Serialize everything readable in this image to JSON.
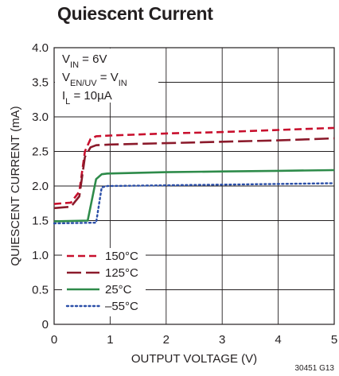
{
  "title": "Quiescent Current",
  "figure_code": "30451 G13",
  "conditions": [
    {
      "main": "V",
      "sub": "IN",
      "rest": " = 6V"
    },
    {
      "main": "V",
      "sub": "EN/UV",
      "rest": " = V",
      "sub2": "IN"
    },
    {
      "main": "I",
      "sub": "L",
      "rest": " = 10µA"
    }
  ],
  "chart_data": {
    "type": "line",
    "title": "Quiescent Current",
    "xlabel": "OUTPUT VOLTAGE (V)",
    "ylabel": "QUIESCENT CURRENT (mA)",
    "xlim": [
      0,
      5
    ],
    "ylim": [
      0,
      4.0
    ],
    "x_ticks": [
      "0",
      "1",
      "2",
      "3",
      "4",
      "5"
    ],
    "y_ticks": [
      "0",
      "0.5",
      "1.0",
      "1.5",
      "2.0",
      "2.5",
      "3.0",
      "3.5",
      "4.0"
    ],
    "grid": true,
    "legend_position": "bottom-left",
    "series": [
      {
        "name": "150°C",
        "color": "#c8102e",
        "style": "dash",
        "x": [
          0,
          0.3,
          0.45,
          0.55,
          0.65,
          0.75,
          1.0,
          2.0,
          3.0,
          4.0,
          5.0
        ],
        "y": [
          1.74,
          1.76,
          1.92,
          2.5,
          2.68,
          2.72,
          2.73,
          2.76,
          2.78,
          2.81,
          2.84
        ]
      },
      {
        "name": "125°C",
        "color": "#8b1a2b",
        "style": "longdash",
        "x": [
          0,
          0.3,
          0.45,
          0.55,
          0.65,
          0.75,
          1.0,
          2.0,
          3.0,
          4.0,
          5.0
        ],
        "y": [
          1.68,
          1.7,
          1.85,
          2.42,
          2.56,
          2.59,
          2.6,
          2.62,
          2.64,
          2.66,
          2.69
        ]
      },
      {
        "name": "25°C",
        "color": "#2e8b4a",
        "style": "solid",
        "x": [
          0,
          0.6,
          0.75,
          0.85,
          0.95,
          2.0,
          3.0,
          4.0,
          5.0
        ],
        "y": [
          1.49,
          1.5,
          2.1,
          2.17,
          2.18,
          2.2,
          2.21,
          2.22,
          2.23
        ]
      },
      {
        "name": "–55°C",
        "color": "#2b4fa8",
        "style": "dot",
        "x": [
          0,
          0.75,
          0.85,
          0.95,
          2.0,
          3.0,
          4.0,
          5.0
        ],
        "y": [
          1.46,
          1.47,
          1.98,
          2.0,
          2.01,
          2.02,
          2.03,
          2.04
        ]
      }
    ]
  }
}
